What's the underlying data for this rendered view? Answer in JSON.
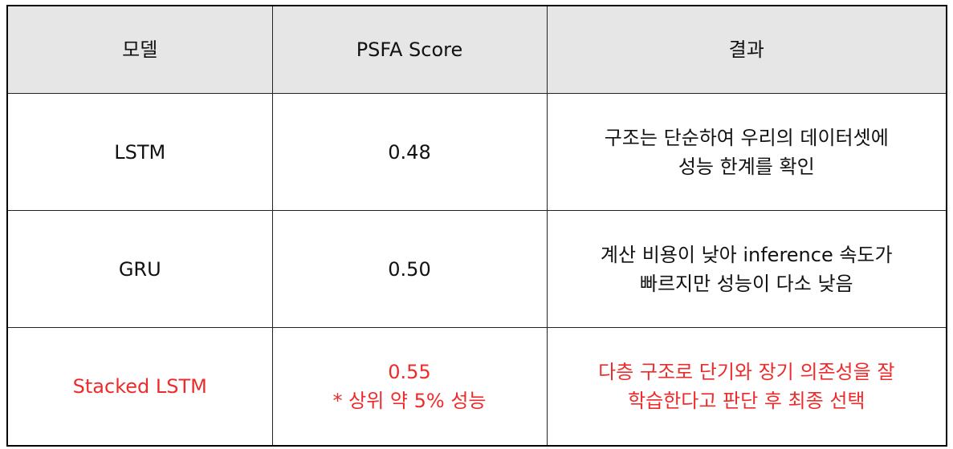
{
  "colors": {
    "header_bg": "#e7e6e6",
    "highlight_text": "#ee2b2b",
    "border": "#222222"
  },
  "headers": {
    "model": "모델",
    "score": "PSFA Score",
    "result": "결과"
  },
  "rows": [
    {
      "model": "LSTM",
      "score": "0.48",
      "score_note": "",
      "result_line1": "구조는 단순하여 우리의 데이터셋에",
      "result_line2": "성능 한계를 확인"
    },
    {
      "model": "GRU",
      "score": "0.50",
      "score_note": "",
      "result_line1": "계산 비용이 낮아 inference 속도가",
      "result_line2": "빠르지만 성능이 다소 낮음"
    },
    {
      "model": "Stacked LSTM",
      "score": "0.55",
      "score_note": "* 상위 약 5% 성능",
      "result_line1": "다층 구조로 단기와 장기 의존성을 잘",
      "result_line2": "학습한다고 판단 후 최종 선택"
    }
  ]
}
